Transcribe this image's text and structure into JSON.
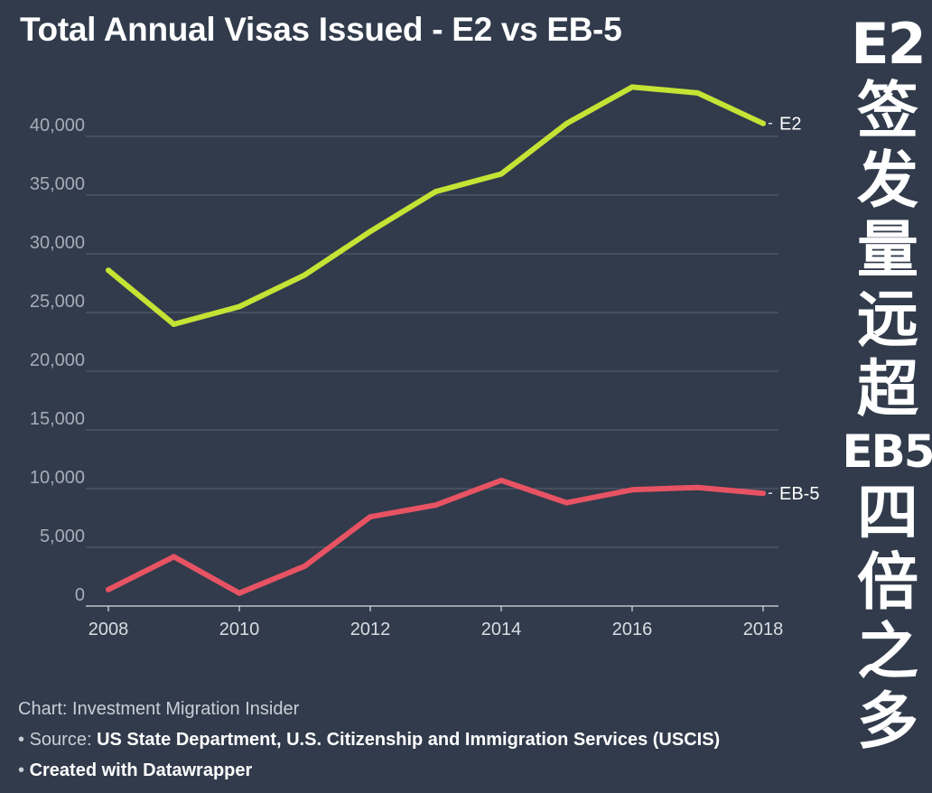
{
  "title": "Total Annual Visas Issued - E2 vs EB-5",
  "side_banner": {
    "lines": [
      "E2",
      "签",
      "发",
      "量",
      "远",
      "超",
      "EB5",
      "四",
      "倍",
      "之",
      "多"
    ]
  },
  "footer": {
    "chart_credit": "Chart: Investment Migration Insider",
    "source_prefix": "Source: ",
    "source_text": "US State Department, U.S. Citizenship and Immigration Services (USCIS)",
    "created_with": "Created with Datawrapper",
    "bullet": "•"
  },
  "colors": {
    "background": "#313b4b",
    "e2_line": "#c5e334",
    "eb5_line": "#e75363",
    "gridline": "#5a6372",
    "tick_text": "#a6adb8"
  },
  "chart_data": {
    "type": "line",
    "title": "Total Annual Visas Issued - E2 vs EB-5",
    "xlabel": "",
    "ylabel": "",
    "x": [
      2008,
      2009,
      2010,
      2011,
      2012,
      2013,
      2014,
      2015,
      2016,
      2017,
      2018
    ],
    "xlim": [
      2008,
      2018
    ],
    "ylim": [
      0,
      45000
    ],
    "grid": true,
    "x_ticks": [
      "2008",
      "2010",
      "2012",
      "2014",
      "2016",
      "2018"
    ],
    "y_ticks": [
      "0",
      "5,000",
      "10,000",
      "15,000",
      "20,000",
      "25,000",
      "30,000",
      "35,000",
      "40,000"
    ],
    "series": [
      {
        "name": "E2",
        "color": "#c5e334",
        "values": [
          28600,
          24000,
          25500,
          28200,
          31900,
          35300,
          36800,
          41100,
          44200,
          43700,
          41100
        ]
      },
      {
        "name": "EB-5",
        "color": "#e75363",
        "values": [
          1400,
          4200,
          1100,
          3400,
          7600,
          8600,
          10700,
          8800,
          9900,
          10100,
          9600
        ]
      }
    ]
  }
}
